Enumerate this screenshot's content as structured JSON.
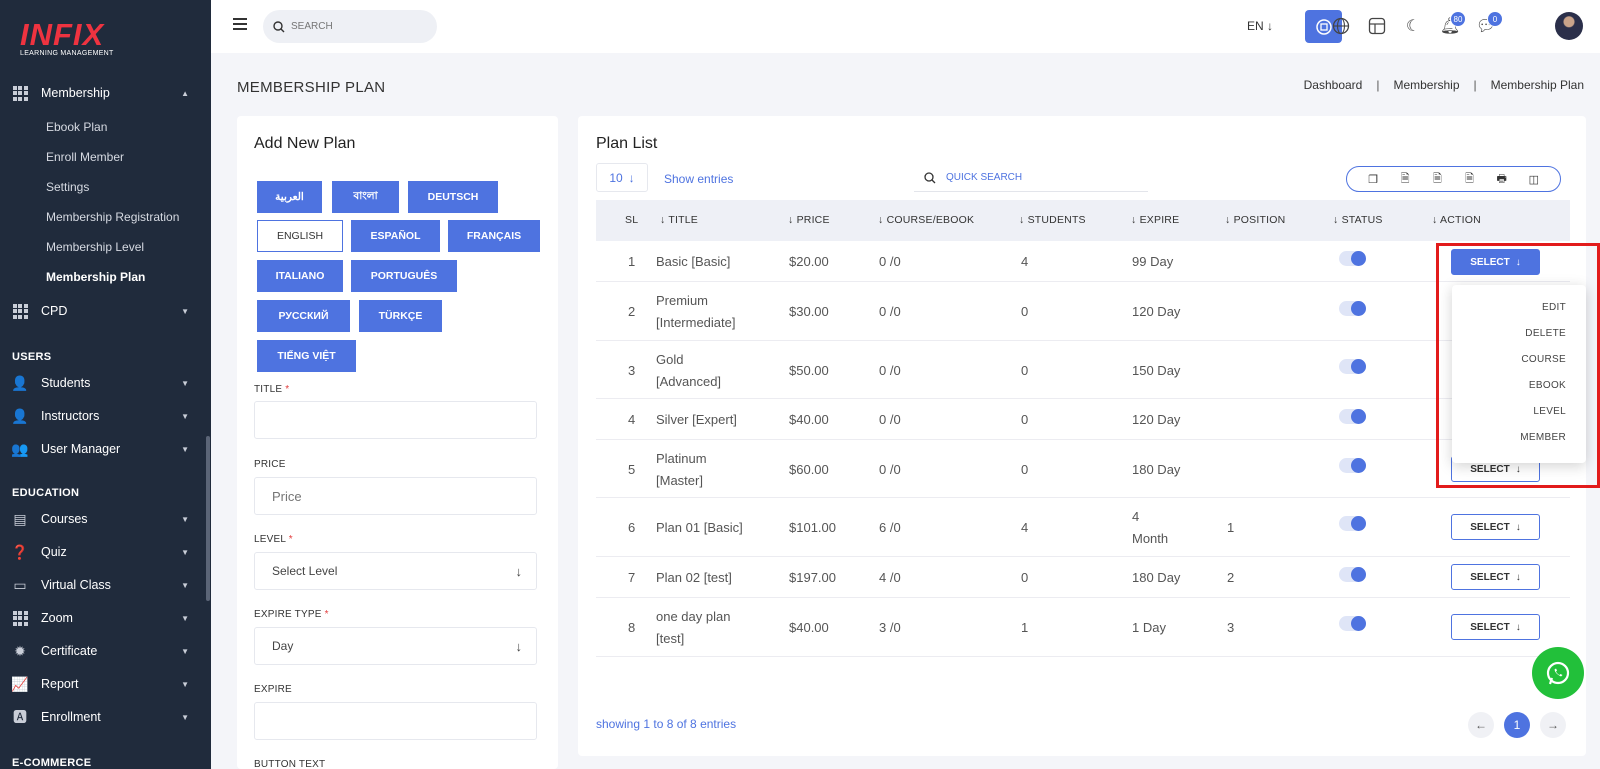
{
  "brand": {
    "logo_text": "INFIX",
    "logo_sub": "LEARNING MANAGEMENT"
  },
  "sidebar": {
    "membership": {
      "label": "Membership",
      "items": [
        "Ebook Plan",
        "Enroll Member",
        "Settings",
        "Membership Registration",
        "Membership Level",
        "Membership Plan"
      ]
    },
    "cpd": "CPD",
    "sections": {
      "users": "USERS",
      "education": "EDUCATION",
      "ecommerce": "E-COMMERCE"
    },
    "users_items": [
      "Students",
      "Instructors",
      "User Manager"
    ],
    "education_items": [
      "Courses",
      "Quiz",
      "Virtual Class",
      "Zoom",
      "Certificate",
      "Report",
      "Enrollment"
    ]
  },
  "header": {
    "search_placeholder": "SEARCH",
    "lang": "EN",
    "notif_count": "80",
    "msg_count": "0"
  },
  "page": {
    "title": "MEMBERSHIP PLAN",
    "breadcrumb": [
      "Dashboard",
      "Membership",
      "Membership Plan"
    ]
  },
  "form": {
    "title": "Add New Plan",
    "languages": [
      "العربية",
      "বাংলা",
      "DEUTSCH",
      "ENGLISH",
      "ESPAÑOL",
      "FRANÇAIS",
      "ITALIANO",
      "PORTUGUÊS",
      "РУССКИЙ",
      "TÜRKÇE",
      "TIẾNG VIỆT"
    ],
    "selected_language": "ENGLISH",
    "title_label": "TITLE",
    "price_label": "PRICE",
    "price_placeholder": "Price",
    "level_label": "LEVEL",
    "level_value": "Select Level",
    "expire_type_label": "EXPIRE TYPE",
    "expire_type_value": "Day",
    "expire_label": "EXPIRE",
    "button_text_label": "BUTTON TEXT"
  },
  "list": {
    "title": "Plan List",
    "entries_value": "10",
    "show_entries": "Show entries",
    "quick_search": "QUICK SEARCH",
    "columns": [
      "SL",
      "TITLE",
      "PRICE",
      "COURSE/EBOOK",
      "STUDENTS",
      "EXPIRE",
      "POSITION",
      "STATUS",
      "ACTION"
    ],
    "select_label": "SELECT",
    "rows": [
      {
        "sl": "1",
        "title1": "Basic [Basic]",
        "title2": "",
        "price": "$20.00",
        "course": "0 /0",
        "students": "4",
        "expire1": "99 Day",
        "expire2": "",
        "position": ""
      },
      {
        "sl": "2",
        "title1": "Premium",
        "title2": "[Intermediate]",
        "price": "$30.00",
        "course": "0 /0",
        "students": "0",
        "expire1": "120 Day",
        "expire2": "",
        "position": ""
      },
      {
        "sl": "3",
        "title1": "Gold",
        "title2": "[Advanced]",
        "price": "$50.00",
        "course": "0 /0",
        "students": "0",
        "expire1": "150 Day",
        "expire2": "",
        "position": ""
      },
      {
        "sl": "4",
        "title1": "Silver [Expert]",
        "title2": "",
        "price": "$40.00",
        "course": "0 /0",
        "students": "0",
        "expire1": "120 Day",
        "expire2": "",
        "position": ""
      },
      {
        "sl": "5",
        "title1": "Platinum",
        "title2": "[Master]",
        "price": "$60.00",
        "course": "0 /0",
        "students": "0",
        "expire1": "180 Day",
        "expire2": "",
        "position": ""
      },
      {
        "sl": "6",
        "title1": "Plan 01 [Basic]",
        "title2": "",
        "price": "$101.00",
        "course": "6 /0",
        "students": "4",
        "expire1": "4",
        "expire2": "Month",
        "position": "1"
      },
      {
        "sl": "7",
        "title1": "Plan 02 [test]",
        "title2": "",
        "price": "$197.00",
        "course": "4 /0",
        "students": "0",
        "expire1": "180 Day",
        "expire2": "",
        "position": "2"
      },
      {
        "sl": "8",
        "title1": "one day plan",
        "title2": "[test]",
        "price": "$40.00",
        "course": "3 /0",
        "students": "1",
        "expire1": "1 Day",
        "expire2": "",
        "position": "3"
      }
    ],
    "dropdown": [
      "EDIT",
      "DELETE",
      "COURSE",
      "EBOOK",
      "LEVEL",
      "MEMBER"
    ],
    "showing": "showing 1 to 8 of 8 entries",
    "current_page": "1"
  },
  "colors": {
    "accent": "#4e73e0",
    "sidebar": "#202b3c",
    "highlight": "#e21b1b",
    "whatsapp": "#22c03a"
  }
}
